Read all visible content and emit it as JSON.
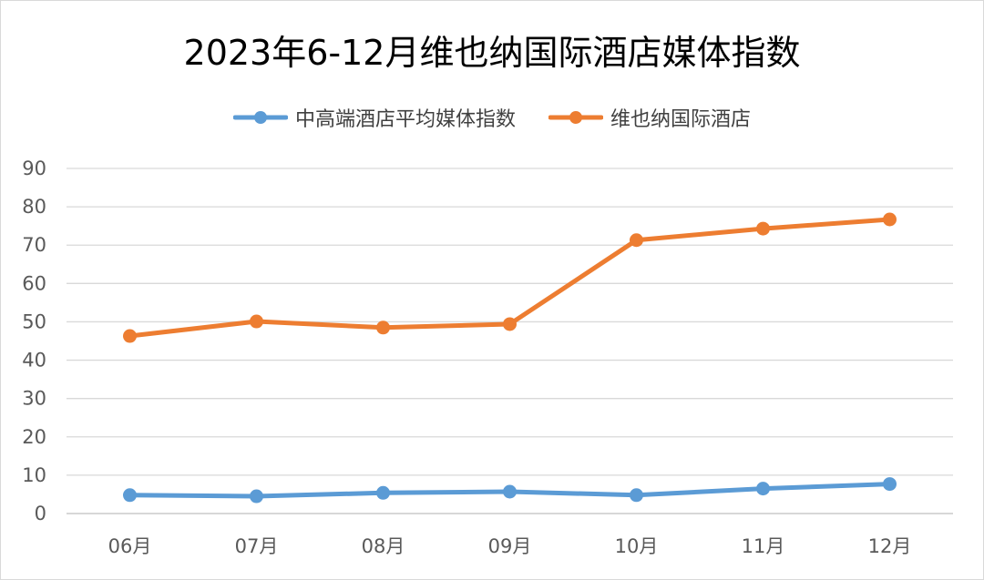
{
  "chart_data": {
    "type": "line",
    "title": "2023年6-12月维也纳国际酒店媒体指数",
    "categories": [
      "06月",
      "07月",
      "08月",
      "09月",
      "10月",
      "11月",
      "12月"
    ],
    "series": [
      {
        "name": "中高端酒店平均媒体指数",
        "color": "#5b9bd5",
        "values": [
          4.8,
          4.5,
          5.4,
          5.7,
          4.8,
          6.5,
          7.7
        ]
      },
      {
        "name": "维也纳国际酒店",
        "color": "#ed7d31",
        "values": [
          46.3,
          50.1,
          48.5,
          49.4,
          71.3,
          74.3,
          76.7
        ]
      }
    ],
    "ylim": [
      0,
      90
    ],
    "yticks": [
      "0",
      "10",
      "20",
      "30",
      "40",
      "50",
      "60",
      "70",
      "80",
      "90"
    ],
    "grid": true,
    "legend_position": "top"
  }
}
